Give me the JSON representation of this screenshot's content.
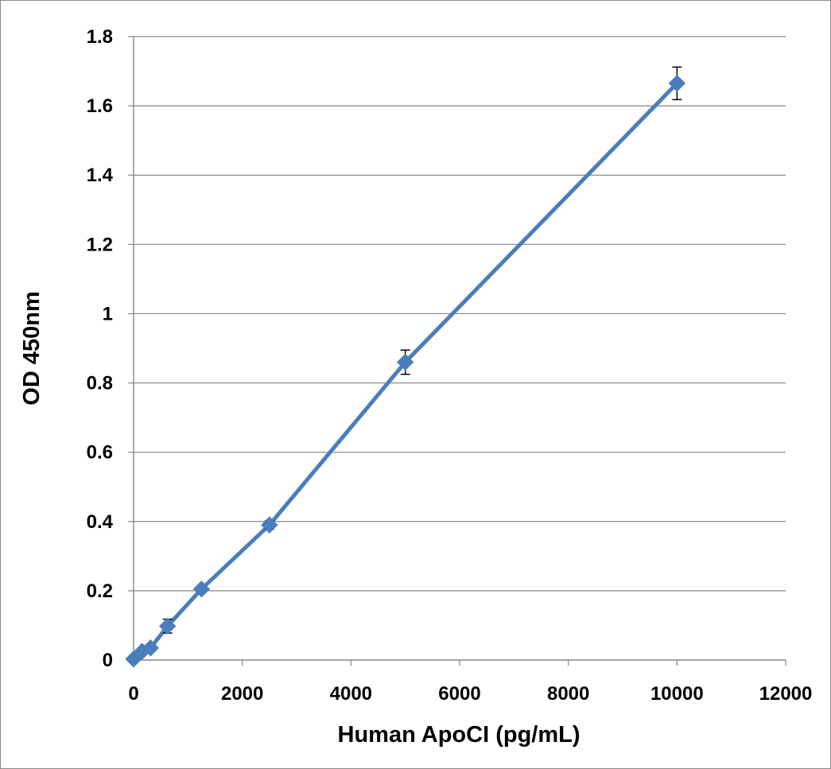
{
  "chart_data": {
    "type": "scatter",
    "title": "",
    "xlabel": "Human ApoCI (pg/mL)",
    "ylabel": "OD 450nm",
    "xlim": [
      0,
      12000
    ],
    "ylim": [
      0,
      1.8
    ],
    "x_ticks": [
      0,
      2000,
      4000,
      6000,
      8000,
      10000,
      12000
    ],
    "y_ticks": [
      0,
      0.2,
      0.4,
      0.6,
      0.8,
      1,
      1.2,
      1.4,
      1.6,
      1.8
    ],
    "x_tick_labels": [
      "0",
      "2000",
      "4000",
      "6000",
      "8000",
      "10000",
      "12000"
    ],
    "y_tick_labels": [
      "0",
      "0.2",
      "0.4",
      "0.6",
      "0.8",
      "1",
      "1.2",
      "1.4",
      "1.6",
      "1.8"
    ],
    "grid": {
      "horizontal": true,
      "vertical": false
    },
    "legend": "none",
    "connect_points": true,
    "series": [
      {
        "marker": "diamond",
        "color": "#4a7ebb",
        "x": [
          0,
          156,
          312,
          625,
          1250,
          2500,
          5000,
          10000
        ],
        "y": [
          0.003,
          0.025,
          0.035,
          0.098,
          0.205,
          0.39,
          0.86,
          1.665
        ],
        "error": [
          0.003,
          0.006,
          0.006,
          0.02,
          0.01,
          0.012,
          0.035,
          0.047
        ]
      }
    ]
  }
}
